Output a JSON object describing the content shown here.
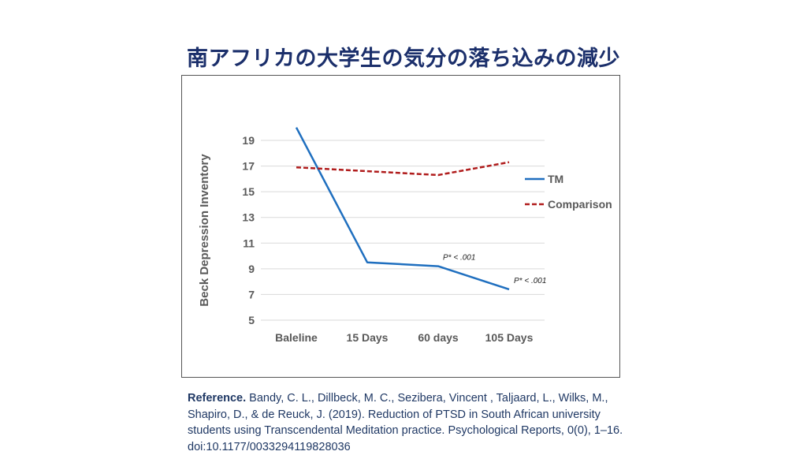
{
  "title": "南アフリカの大学生の気分の落ち込みの減少",
  "chart_data": {
    "type": "line",
    "title": "",
    "xlabel": "",
    "ylabel": "Beck Depression Inventory",
    "categories": [
      "Baleline",
      "15 Days",
      "60 days",
      "105 Days"
    ],
    "yticks": [
      5,
      7,
      9,
      11,
      13,
      15,
      17,
      19
    ],
    "ylim": [
      5,
      19
    ],
    "grid": true,
    "legend_position": "right",
    "series": [
      {
        "name": "TM",
        "values": [
          20.0,
          9.5,
          9.2,
          7.4
        ],
        "color": "#1f6fbf",
        "style": "solid"
      },
      {
        "name": "Comparison",
        "values": [
          16.9,
          16.6,
          16.3,
          17.3
        ],
        "color": "#b01c1c",
        "style": "dashed"
      }
    ],
    "annotations": [
      {
        "text": "P* < .001",
        "category": "60 days",
        "series": "TM"
      },
      {
        "text": "P* < .001",
        "category": "105 Days",
        "series": "TM"
      }
    ]
  },
  "reference": {
    "label": "Reference.",
    "text": " Bandy, C. L., Dillbeck, M. C., Sezibera, Vincent , Taljaard, L., Wilks, M., Shapiro, D., & de Reuck, J. (2019). Reduction of PTSD in South African university students using Transcendental Meditation practice. Psychological Reports, 0(0), 1–16. doi:10.1177/0033294119828036"
  }
}
